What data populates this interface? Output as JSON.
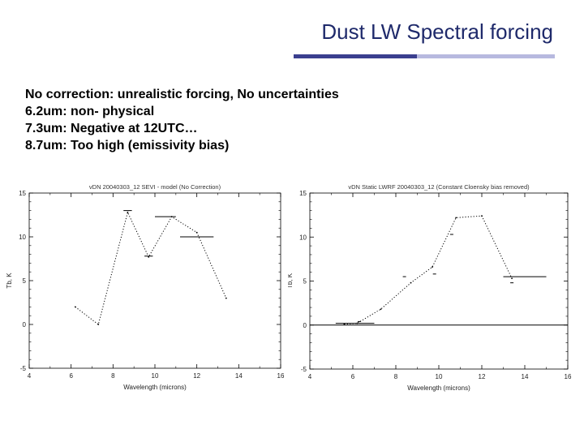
{
  "slide": {
    "title": "Dust LW Spectral forcing",
    "bullets": [
      "No correction: unrealistic forcing, No uncertainties",
      "6.2um: non- physical",
      "7.3um: Negative at 12UTC…",
      "8.7um: Too high (emissivity bias)"
    ],
    "colors": {
      "title": "#1f2a6b",
      "bar_dark": "#3b3f8f",
      "bar_light": "#b7b9df"
    }
  },
  "chart_data": [
    {
      "type": "line",
      "title": "vDN 20040303_12 SEVI - model (No Correction)",
      "xlabel": "Wavelength (microns)",
      "ylabel": "Tb, K",
      "xlim": [
        4,
        16
      ],
      "ylim": [
        -5,
        15
      ],
      "xticks": [
        4,
        6,
        8,
        10,
        12,
        14,
        16
      ],
      "yticks": [
        -5,
        0,
        5,
        10,
        15
      ],
      "grid": false,
      "series": [
        {
          "style": "dotted",
          "points": [
            [
              6.2,
              2
            ],
            [
              7.3,
              0
            ],
            [
              8.7,
              12.8
            ],
            [
              9.7,
              7.7
            ],
            [
              10.8,
              12.3
            ],
            [
              12.0,
              10.5
            ],
            [
              13.4,
              3.0
            ]
          ]
        }
      ],
      "bands": [
        {
          "x": [
            8.5,
            8.9
          ],
          "y": 13.0
        },
        {
          "x": [
            9.5,
            9.9
          ],
          "y": 7.8
        },
        {
          "x": [
            10.0,
            11.0
          ],
          "y": 12.3
        },
        {
          "x": [
            11.2,
            12.8
          ],
          "y": 10.0
        }
      ]
    },
    {
      "type": "line",
      "title": "vDN Static LWRF 20040303_12 (Constant Cloensky bias removed)",
      "xlabel": "Wavelength (microns)",
      "ylabel": "Tb, K",
      "xlim": [
        4,
        16
      ],
      "ylim": [
        -5,
        15
      ],
      "xticks": [
        4,
        6,
        8,
        10,
        12,
        14,
        16
      ],
      "yticks": [
        -5,
        0,
        5,
        10,
        15
      ],
      "grid": false,
      "zero_line": true,
      "series": [
        {
          "style": "dotted",
          "points": [
            [
              5.6,
              0.1
            ],
            [
              6.2,
              0.2
            ],
            [
              7.3,
              1.8
            ],
            [
              8.7,
              4.8
            ],
            [
              9.7,
              6.6
            ],
            [
              10.8,
              12.2
            ],
            [
              12.0,
              12.4
            ],
            [
              13.4,
              5.3
            ]
          ]
        }
      ],
      "bands": [
        {
          "x": [
            5.2,
            7.0
          ],
          "y": 0.2
        },
        {
          "x": [
            13.0,
            15.0
          ],
          "y": 5.5
        }
      ],
      "markers": [
        {
          "x": 6.3,
          "y": 0.4
        },
        {
          "x": 8.4,
          "y": 5.5
        },
        {
          "x": 9.8,
          "y": 5.8
        },
        {
          "x": 10.6,
          "y": 10.3
        },
        {
          "x": 13.4,
          "y": 4.8
        }
      ]
    }
  ]
}
